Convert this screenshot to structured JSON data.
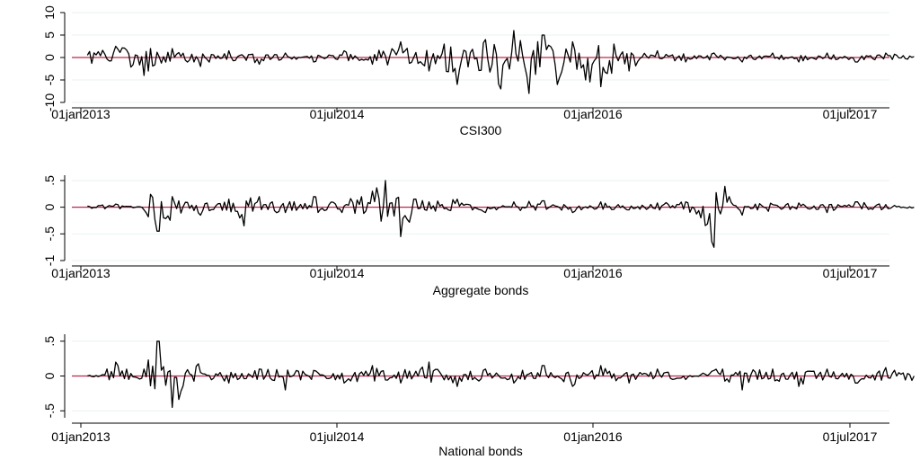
{
  "chart_data": [
    {
      "type": "line",
      "xlabel": "CSI300",
      "x_ticks": [
        "01jan2013",
        "01jul2014",
        "01jan2016",
        "01jul2017"
      ],
      "y_ticks": [
        "-10",
        "-5",
        "0",
        "5",
        "10"
      ],
      "y_tick_values": [
        -10,
        -5,
        0,
        5,
        10
      ],
      "ylim": [
        -10,
        10
      ],
      "grid": "horizontal",
      "zero_line": true,
      "series_color": "#000000",
      "reference_line_color": "#c0264a",
      "series": [
        {
          "x": [
            "2013-01",
            "2013-03",
            "2013-05",
            "2013-07",
            "2013-09",
            "2013-11",
            "2014-01",
            "2014-03",
            "2014-05",
            "2014-07",
            "2014-09",
            "2014-11",
            "2015-01",
            "2015-02",
            "2015-03",
            "2015-05",
            "2015-06",
            "2015-07",
            "2015-08",
            "2015-09",
            "2015-10",
            "2015-11",
            "2015-12",
            "2016-01",
            "2016-02",
            "2016-03",
            "2016-05",
            "2016-07",
            "2016-09",
            "2016-11",
            "2017-01",
            "2017-03",
            "2017-05",
            "2017-07",
            "2017-09",
            "2017-11"
          ],
          "values": [
            0.5,
            2.5,
            -4.0,
            2.0,
            -2.0,
            1.5,
            -1.5,
            1.0,
            -1.0,
            1.5,
            -1.5,
            3.5,
            -3.0,
            3.0,
            -6.0,
            4.0,
            -7.0,
            6.0,
            -8.0,
            5.0,
            -6.0,
            3.5,
            -5.0,
            -6.5,
            3.0,
            -3.0,
            1.5,
            -1.0,
            1.0,
            -1.0,
            1.0,
            -1.0,
            1.0,
            -1.0,
            1.0,
            0.2
          ]
        }
      ]
    },
    {
      "type": "line",
      "xlabel": "Aggregate bonds",
      "x_ticks": [
        "01jan2013",
        "01jul2014",
        "01jan2016",
        "01jul2017"
      ],
      "y_ticks": [
        "-1",
        "-.5",
        "0",
        ".5"
      ],
      "y_tick_values": [
        -1,
        -0.5,
        0,
        0.5
      ],
      "ylim": [
        -1,
        0.6
      ],
      "grid": "horizontal",
      "zero_line": true,
      "series_color": "#000000",
      "reference_line_color": "#c0264a",
      "series": [
        {
          "x": [
            "2013-01",
            "2013-03",
            "2013-05",
            "2013-06",
            "2013-07",
            "2013-09",
            "2013-11",
            "2013-12",
            "2014-01",
            "2014-03",
            "2014-05",
            "2014-07",
            "2014-09",
            "2014-10",
            "2014-11",
            "2014-12",
            "2015-01",
            "2015-03",
            "2015-05",
            "2015-07",
            "2015-09",
            "2015-11",
            "2016-01",
            "2016-03",
            "2016-05",
            "2016-07",
            "2016-08",
            "2016-09",
            "2016-10",
            "2016-11",
            "2017-01",
            "2017-03",
            "2017-05",
            "2017-07",
            "2017-09",
            "2017-11"
          ],
          "values": [
            0.02,
            0.06,
            -0.05,
            -0.45,
            0.2,
            -0.15,
            0.15,
            -0.35,
            0.2,
            -0.1,
            0.2,
            0.02,
            0.3,
            0.5,
            -0.55,
            0.15,
            0.1,
            0.15,
            -0.1,
            0.1,
            0.12,
            -0.1,
            0.1,
            -0.05,
            0.08,
            0.1,
            -0.2,
            -0.75,
            0.2,
            -0.15,
            0.05,
            0.08,
            -0.1,
            0.1,
            0.05,
            0.0
          ]
        }
      ]
    },
    {
      "type": "line",
      "xlabel": "National bonds",
      "x_ticks": [
        "01jan2013",
        "01jul2014",
        "01jan2016",
        "01jul2017"
      ],
      "y_ticks": [
        "-.5",
        "0",
        ".5"
      ],
      "y_tick_values": [
        -0.5,
        0,
        0.5
      ],
      "ylim": [
        -0.6,
        0.6
      ],
      "grid": "horizontal",
      "zero_line": true,
      "series_color": "#000000",
      "reference_line_color": "#c0264a",
      "series": [
        {
          "x": [
            "2013-01",
            "2013-02",
            "2013-03",
            "2013-04",
            "2013-05",
            "2013-06",
            "2013-07",
            "2013-09",
            "2013-11",
            "2014-01",
            "2014-03",
            "2014-05",
            "2014-07",
            "2014-09",
            "2014-11",
            "2015-01",
            "2015-03",
            "2015-05",
            "2015-07",
            "2015-09",
            "2015-11",
            "2016-01",
            "2016-03",
            "2016-05",
            "2016-07",
            "2016-09",
            "2016-11",
            "2017-01",
            "2017-03",
            "2017-05",
            "2017-07",
            "2017-09",
            "2017-11"
          ],
          "values": [
            0.0,
            0.02,
            0.2,
            -0.05,
            0.1,
            0.5,
            -0.45,
            0.05,
            -0.1,
            0.1,
            -0.2,
            0.08,
            -0.1,
            0.15,
            -0.1,
            0.2,
            -0.15,
            0.1,
            -0.1,
            0.15,
            -0.15,
            0.15,
            -0.1,
            0.1,
            -0.05,
            0.08,
            -0.2,
            0.1,
            -0.15,
            0.1,
            -0.1,
            0.12,
            0.0
          ]
        }
      ]
    }
  ]
}
